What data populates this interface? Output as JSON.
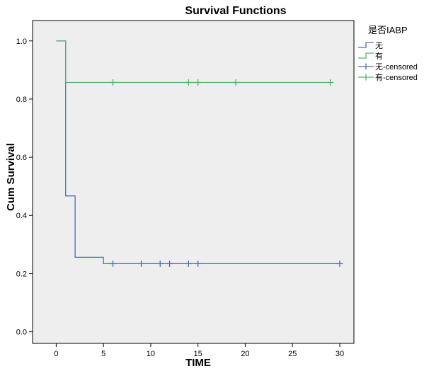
{
  "chart_data": {
    "type": "line",
    "title": "Survival Functions",
    "xlabel": "TIME",
    "ylabel": "Cum Survival",
    "xlim": [
      -2.5,
      31.5
    ],
    "ylim": [
      -0.04,
      1.07
    ],
    "x_ticks": [
      0,
      5,
      10,
      15,
      20,
      25,
      30
    ],
    "y_ticks": [
      0.0,
      0.2,
      0.4,
      0.6,
      0.8,
      1.0
    ],
    "x_tick_labels": [
      "0",
      "5",
      "10",
      "15",
      "20",
      "25",
      "30"
    ],
    "y_tick_labels": [
      "0.0",
      "0.2",
      "0.4",
      "0.6",
      "0.8",
      "1.0"
    ],
    "legend_title": "是否IABP",
    "legend_position": "right",
    "plot_background": "#eeeeee",
    "series": [
      {
        "name": "无",
        "color": "#4a6fb6",
        "step_x": [
          0,
          1,
          1,
          2,
          2,
          5,
          5,
          30
        ],
        "step_y": [
          1.0,
          1.0,
          0.467,
          0.467,
          0.256,
          0.256,
          0.234,
          0.234
        ],
        "censored_label": "无-censored",
        "censored_x": [
          6,
          9,
          11,
          12,
          14,
          15,
          30
        ],
        "censored_y": 0.234
      },
      {
        "name": "有",
        "color": "#5ab06a",
        "step_x": [
          0,
          1,
          1,
          29
        ],
        "step_y": [
          1.0,
          1.0,
          0.857,
          0.857
        ],
        "censored_label": "有-censored",
        "censored_x": [
          6,
          14,
          15,
          19,
          29
        ],
        "censored_y": 0.857
      }
    ]
  }
}
